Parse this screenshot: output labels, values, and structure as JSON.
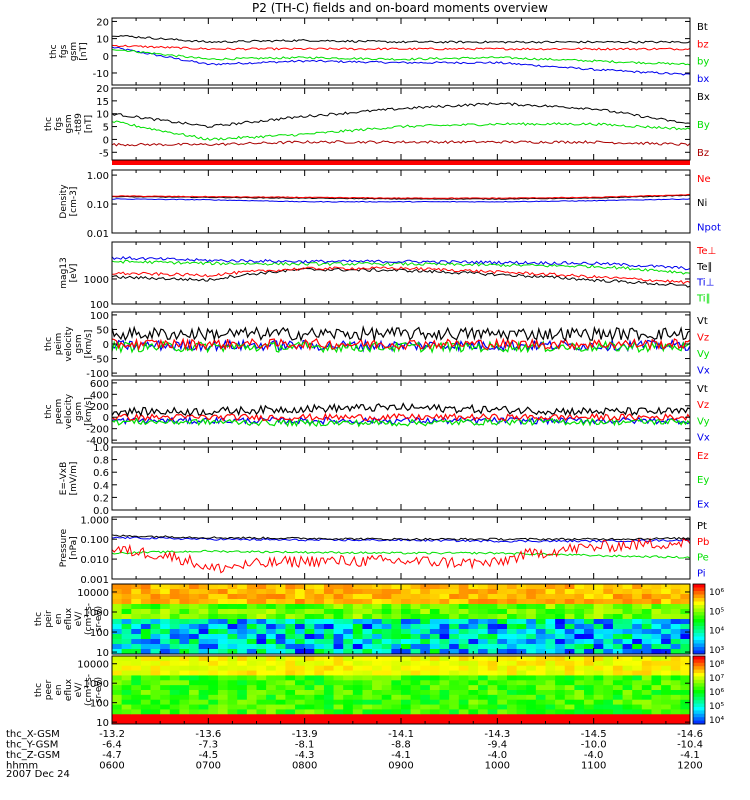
{
  "title": "P2 (TH-C) fields and on-board moments overview",
  "date_label": "2007 Dec 24",
  "colors": {
    "black": "#000000",
    "red": "#ff0000",
    "green": "#00e000",
    "blue": "#0000ee",
    "darkred": "#aa0000"
  },
  "panels": [
    {
      "id": "fgs",
      "ylabel": [
        "thc",
        "fgs",
        "gsm",
        "[nT]"
      ],
      "ticks": [
        {
          "v": 20,
          "t": "20"
        },
        {
          "v": 10,
          "t": "10"
        },
        {
          "v": 0,
          "t": "0"
        },
        {
          "v": -10,
          "t": "-10"
        }
      ],
      "ylim": [
        -17,
        22
      ],
      "log": false,
      "legend": [
        {
          "text": "Bt",
          "color": "#000000"
        },
        {
          "text": "bz",
          "color": "#ff0000"
        },
        {
          "text": "by",
          "color": "#00e000"
        },
        {
          "text": "bx",
          "color": "#0000ee"
        }
      ]
    },
    {
      "id": "fgs2",
      "ylabel": [
        "thc",
        "fgs",
        "gsm",
        "-tt89",
        "[nT]"
      ],
      "ticks": [
        {
          "v": 20,
          "t": "20"
        },
        {
          "v": 15,
          "t": "15"
        },
        {
          "v": 10,
          "t": "10"
        },
        {
          "v": 5,
          "t": "5"
        },
        {
          "v": 0,
          "t": "0"
        },
        {
          "v": -5,
          "t": "-5"
        }
      ],
      "ylim": [
        -8,
        20
      ],
      "log": false,
      "legend": [
        {
          "text": "Bx",
          "color": "#000000"
        },
        {
          "text": "By",
          "color": "#00e000"
        },
        {
          "text": "Bz",
          "color": "#aa0000"
        }
      ]
    },
    {
      "id": "dens",
      "ylabel": [
        "Density",
        "[cm-3]"
      ],
      "ticks": [
        {
          "v": 1,
          "t": "1.00"
        },
        {
          "v": 0.1,
          "t": "0.10"
        },
        {
          "v": 0.01,
          "t": "0.01"
        }
      ],
      "ylim": [
        0.01,
        1.5
      ],
      "log": true,
      "legend": [
        {
          "text": "Ne",
          "color": "#ff0000"
        },
        {
          "text": "Ni",
          "color": "#000000"
        },
        {
          "text": "Npot",
          "color": "#0000ee"
        }
      ]
    },
    {
      "id": "temp",
      "ylabel": [
        "mag13",
        "[eV]"
      ],
      "ticks": [
        {
          "v": 1000,
          "t": "1000"
        },
        {
          "v": 100,
          "t": "100"
        }
      ],
      "ylim": [
        100,
        30000
      ],
      "log": true,
      "legend": [
        {
          "text": "Te⊥",
          "color": "#ff0000"
        },
        {
          "text": "Te∥",
          "color": "#000000"
        },
        {
          "text": "Ti⊥",
          "color": "#0000ee"
        },
        {
          "text": "Ti∥",
          "color": "#00e000"
        }
      ]
    },
    {
      "id": "vi",
      "ylabel": [
        "thc",
        "peim",
        "velocity",
        "gsm",
        "[km/s]"
      ],
      "ticks": [
        {
          "v": 100,
          "t": "100"
        },
        {
          "v": 50,
          "t": "50"
        },
        {
          "v": 0,
          "t": "0"
        },
        {
          "v": -50,
          "t": "-50"
        },
        {
          "v": -100,
          "t": "-100"
        }
      ],
      "ylim": [
        -110,
        110
      ],
      "log": false,
      "legend": [
        {
          "text": "Vt",
          "color": "#000000"
        },
        {
          "text": "Vz",
          "color": "#ff0000"
        },
        {
          "text": "Vy",
          "color": "#00e000"
        },
        {
          "text": "Vx",
          "color": "#0000ee"
        }
      ]
    },
    {
      "id": "ve",
      "ylabel": [
        "thc",
        "peem",
        "velocity",
        "gsm",
        "[km/s]"
      ],
      "ticks": [
        {
          "v": 600,
          "t": "600"
        },
        {
          "v": 400,
          "t": "400"
        },
        {
          "v": 200,
          "t": "200"
        },
        {
          "v": 0,
          "t": "0"
        },
        {
          "v": -200,
          "t": "-200"
        },
        {
          "v": -400,
          "t": "-400"
        }
      ],
      "ylim": [
        -450,
        650
      ],
      "log": false,
      "legend": [
        {
          "text": "Vt",
          "color": "#000000"
        },
        {
          "text": "Vz",
          "color": "#ff0000"
        },
        {
          "text": "Vy",
          "color": "#00e000"
        },
        {
          "text": "Vx",
          "color": "#0000ee"
        }
      ]
    },
    {
      "id": "efield",
      "ylabel": [
        "E=-VxB",
        "[mV/m]"
      ],
      "ticks": [
        {
          "v": 1,
          "t": "1.0"
        },
        {
          "v": 0.8,
          "t": "0.8"
        },
        {
          "v": 0.6,
          "t": "0.6"
        },
        {
          "v": 0.4,
          "t": "0.4"
        },
        {
          "v": 0.2,
          "t": "0.2"
        },
        {
          "v": 0,
          "t": "0.0"
        }
      ],
      "ylim": [
        0,
        1
      ],
      "log": false,
      "legend": [
        {
          "text": "Ez",
          "color": "#ff0000"
        },
        {
          "text": "Ey",
          "color": "#00e000"
        },
        {
          "text": "Ex",
          "color": "#0000ee"
        }
      ]
    },
    {
      "id": "press",
      "ylabel": [
        "Pressure",
        "[nPa]"
      ],
      "ticks": [
        {
          "v": 1,
          "t": "1.000"
        },
        {
          "v": 0.1,
          "t": "0.100"
        },
        {
          "v": 0.01,
          "t": "0.010"
        },
        {
          "v": 0.001,
          "t": "0.001"
        }
      ],
      "ylim": [
        0.001,
        1.3
      ],
      "log": true,
      "legend": [
        {
          "text": "Pt",
          "color": "#000000"
        },
        {
          "text": "Pb",
          "color": "#ff0000"
        },
        {
          "text": "Pe",
          "color": "#00e000"
        },
        {
          "text": "Pi",
          "color": "#0000ee"
        }
      ]
    },
    {
      "id": "ieflux",
      "ylabel": [
        "thc",
        "peir",
        "en",
        "eflux",
        "eV/",
        "(cm²-s-",
        "sr-eV)"
      ],
      "ticks": [
        {
          "v": 10000,
          "t": "10000"
        },
        {
          "v": 1000,
          "t": "1000"
        },
        {
          "v": 100,
          "t": "100"
        },
        {
          "v": 10,
          "t": "10"
        }
      ],
      "ylim": [
        8,
        25000
      ],
      "log": true,
      "colorbar": [
        "10⁶",
        "10⁵",
        "10⁴",
        "10³"
      ]
    },
    {
      "id": "eeflux",
      "ylabel": [
        "thc",
        "peer",
        "en",
        "eflux",
        "eV/",
        "(cm²-s-",
        "sr-eV)"
      ],
      "ticks": [
        {
          "v": 10000,
          "t": "10000"
        },
        {
          "v": 1000,
          "t": "1000"
        },
        {
          "v": 100,
          "t": "100"
        },
        {
          "v": 10,
          "t": "10"
        }
      ],
      "ylim": [
        8,
        25000
      ],
      "log": true,
      "colorbar": [
        "10⁸",
        "10⁷",
        "10⁶",
        "10⁵",
        "10⁴"
      ]
    }
  ],
  "x_axis": {
    "rows": [
      {
        "label": "thc_X-GSM",
        "values": [
          "-13.2",
          "-13.6",
          "-13.9",
          "-14.1",
          "-14.3",
          "-14.5",
          "-14.6"
        ]
      },
      {
        "label": "thc_Y-GSM",
        "values": [
          "-6.4",
          "-7.3",
          "-8.1",
          "-8.8",
          "-9.4",
          "-10.0",
          "-10.4"
        ]
      },
      {
        "label": "thc_Z-GSM",
        "values": [
          "-4.7",
          "-4.5",
          "-4.3",
          "-4.1",
          "-4.0",
          "-4.0",
          "-4.1"
        ]
      },
      {
        "label": "hhmm",
        "values": [
          "0600",
          "0700",
          "0800",
          "0900",
          "1000",
          "1100",
          "1200"
        ]
      }
    ]
  },
  "chart_data": {
    "type": "line",
    "title": "P2 (TH-C) fields and on-board moments overview",
    "x": [
      "0600",
      "0700",
      "0800",
      "0900",
      "1000",
      "1100",
      "1200"
    ],
    "panels": [
      {
        "name": "thc fgs gsm [nT]",
        "series": [
          {
            "name": "Bt",
            "values": [
              12,
              8,
              9,
              8,
              8,
              8,
              8
            ]
          },
          {
            "name": "bz",
            "values": [
              6,
              4,
              4,
              4,
              4,
              4,
              4
            ]
          },
          {
            "name": "by",
            "values": [
              4,
              -2,
              -1,
              -2,
              -1,
              -3,
              -5
            ]
          },
          {
            "name": "bx",
            "values": [
              5,
              -5,
              -3,
              -4,
              -4,
              -8,
              -11
            ]
          }
        ]
      },
      {
        "name": "thc fgs gsm -tt89 [nT]",
        "series": [
          {
            "name": "Bx",
            "values": [
              10,
              5,
              9,
              12,
              14,
              12,
              6
            ]
          },
          {
            "name": "By",
            "values": [
              7,
              0,
              2,
              5,
              6,
              6,
              4
            ]
          },
          {
            "name": "Bz",
            "values": [
              -2,
              -2,
              -1,
              -1,
              -1,
              -1,
              -2
            ]
          }
        ]
      },
      {
        "name": "Density [cm-3]",
        "series": [
          {
            "name": "Ne",
            "values": [
              0.19,
              0.18,
              0.17,
              0.16,
              0.16,
              0.17,
              0.21
            ]
          },
          {
            "name": "Ni",
            "values": [
              0.18,
              0.17,
              0.16,
              0.15,
              0.15,
              0.16,
              0.2
            ]
          },
          {
            "name": "Npot",
            "values": [
              0.15,
              0.14,
              0.12,
              0.12,
              0.12,
              0.13,
              0.15
            ]
          }
        ]
      },
      {
        "name": "mag13 [eV]",
        "series": [
          {
            "name": "Te⊥",
            "values": [
              1700,
              1400,
              2600,
              2700,
              1900,
              1200,
              700
            ]
          },
          {
            "name": "Te∥",
            "values": [
              1200,
              900,
              2400,
              2200,
              1500,
              900,
              500
            ]
          },
          {
            "name": "Ti⊥",
            "values": [
              7000,
              5500,
              5000,
              5000,
              4600,
              4200,
              2600
            ]
          },
          {
            "name": "Ti∥",
            "values": [
              5000,
              4200,
              4000,
              4000,
              3600,
              3200,
              1700
            ]
          }
        ]
      },
      {
        "name": "thc peim velocity gsm [km/s]",
        "series": [
          {
            "name": "Vt",
            "values": [
              35,
              35,
              35,
              35,
              35,
              35,
              35
            ]
          },
          {
            "name": "Vz",
            "values": [
              0,
              0,
              0,
              0,
              0,
              0,
              0
            ]
          },
          {
            "name": "Vy",
            "values": [
              -10,
              -10,
              -10,
              -10,
              -10,
              -10,
              -10
            ]
          },
          {
            "name": "Vx",
            "values": [
              -5,
              -5,
              -5,
              -5,
              -5,
              -5,
              -5
            ]
          }
        ]
      },
      {
        "name": "thc peem velocity gsm [km/s]",
        "series": [
          {
            "name": "Vt",
            "values": [
              100,
              100,
              150,
              170,
              130,
              100,
              100
            ]
          },
          {
            "name": "Vz",
            "values": [
              0,
              0,
              0,
              0,
              0,
              0,
              0
            ]
          },
          {
            "name": "Vy",
            "values": [
              -80,
              -80,
              -100,
              -100,
              -80,
              -80,
              -80
            ]
          },
          {
            "name": "Vx",
            "values": [
              -60,
              -60,
              -60,
              -60,
              -60,
              -60,
              -60
            ]
          }
        ]
      },
      {
        "name": "E=-VxB [mV/m]",
        "series": []
      },
      {
        "name": "Pressure [nPa]",
        "series": [
          {
            "name": "Pt",
            "values": [
              0.15,
              0.12,
              0.11,
              0.1,
              0.1,
              0.1,
              0.11
            ]
          },
          {
            "name": "Pb",
            "values": [
              0.03,
              0.003,
              0.008,
              0.008,
              0.006,
              0.04,
              0.07
            ]
          },
          {
            "name": "Pe",
            "values": [
              0.02,
              0.025,
              0.022,
              0.02,
              0.02,
              0.015,
              0.012
            ]
          },
          {
            "name": "Pi",
            "values": [
              0.12,
              0.1,
              0.09,
              0.09,
              0.08,
              0.08,
              0.09
            ]
          }
        ]
      }
    ],
    "spectrograms": [
      {
        "name": "thc peir en eflux",
        "ylim": [
          10,
          25000
        ],
        "scale": "log",
        "colorbar": [
          "10³",
          "10⁴",
          "10⁵",
          "10⁶"
        ]
      },
      {
        "name": "thc peer en eflux",
        "ylim": [
          10,
          25000
        ],
        "scale": "log",
        "colorbar": [
          "10⁴",
          "10⁵",
          "10⁶",
          "10⁷",
          "10⁸"
        ]
      }
    ]
  }
}
